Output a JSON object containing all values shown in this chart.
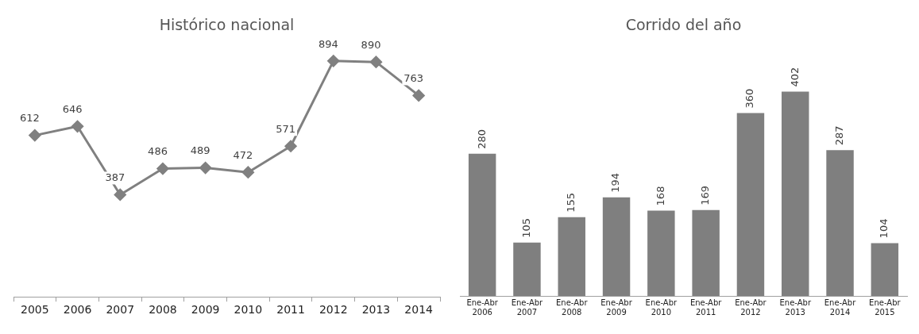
{
  "chart_data": [
    {
      "type": "line",
      "title": "Histórico nacional",
      "categories": [
        "2005",
        "2006",
        "2007",
        "2008",
        "2009",
        "2010",
        "2011",
        "2012",
        "2013",
        "2014"
      ],
      "values": [
        612,
        646,
        387,
        486,
        489,
        472,
        571,
        894,
        890,
        763
      ],
      "color": "#808080",
      "marker": "diamond",
      "data_labels": true
    },
    {
      "type": "bar",
      "title": "Corrido del año",
      "categories": [
        "Ene-Abr 2006",
        "Ene-Abr 2007",
        "Ene-Abr 2008",
        "Ene-Abr 2009",
        "Ene-Abr 2010",
        "Ene-Abr 2011",
        "Ene-Abr 2012",
        "Ene-Abr 2013",
        "Ene-Abr 2014",
        "Ene-Abr 2015"
      ],
      "values": [
        280,
        105,
        155,
        194,
        168,
        169,
        360,
        402,
        287,
        104
      ],
      "color": "#7f7f7f",
      "data_labels": true
    }
  ]
}
